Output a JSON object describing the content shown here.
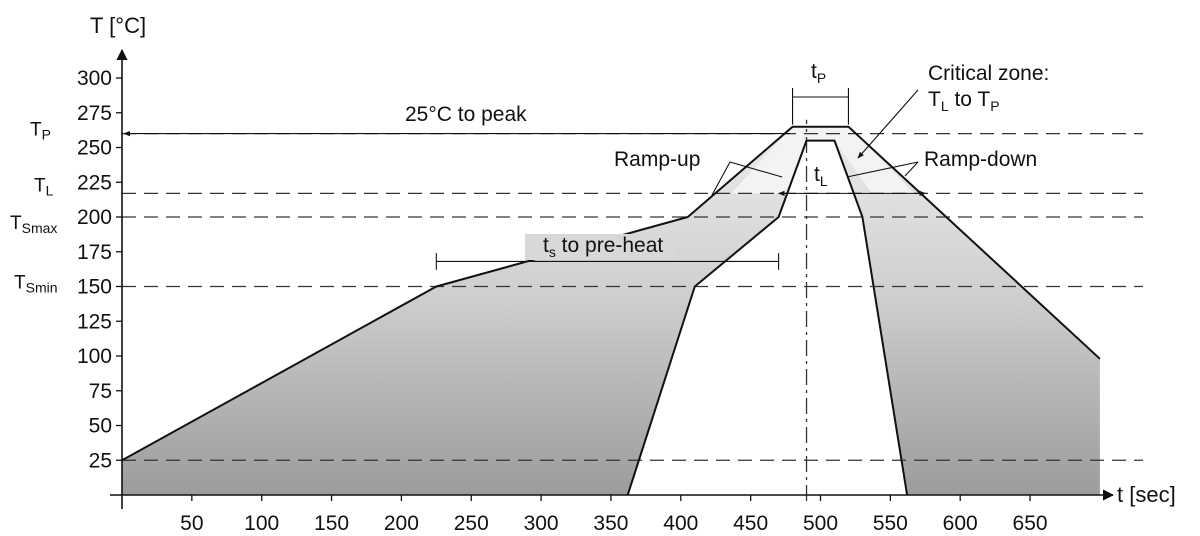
{
  "chart_data": {
    "type": "area",
    "title": "",
    "xlabel": "t [sec]",
    "ylabel": "T [°C]",
    "xlim": [
      0,
      700
    ],
    "ylim": [
      0,
      300
    ],
    "x_ticks": [
      50,
      100,
      150,
      200,
      250,
      300,
      350,
      400,
      450,
      500,
      550,
      600,
      650
    ],
    "y_ticks": [
      25,
      50,
      75,
      100,
      125,
      150,
      175,
      200,
      225,
      250,
      275,
      300
    ],
    "grid": false,
    "legend": "none",
    "reference_levels": [
      {
        "label": "T",
        "sub": "P",
        "y": 260
      },
      {
        "label": "T",
        "sub": "L",
        "y": 217
      },
      {
        "label": "T",
        "sub": "Smax",
        "y": 200
      },
      {
        "label": "T",
        "sub": "Smin",
        "y": 150
      },
      {
        "y": 25
      }
    ],
    "reference_time": 490,
    "outer_envelope": [
      [
        0,
        25
      ],
      [
        225,
        150
      ],
      [
        405,
        200
      ],
      [
        480,
        265
      ],
      [
        520,
        265
      ],
      [
        700,
        98
      ]
    ],
    "inner_envelope": [
      [
        362,
        0
      ],
      [
        410,
        150
      ],
      [
        470,
        200
      ],
      [
        490,
        255
      ],
      [
        510,
        255
      ],
      [
        530,
        200
      ],
      [
        562,
        0
      ]
    ],
    "annotations": [
      {
        "label": "25°C to peak"
      },
      {
        "label": "t",
        "sub": "s",
        "suffix": " to pre-heat",
        "x_from": 225,
        "x_to": 470
      },
      {
        "label": "Ramp-up"
      },
      {
        "label": "Ramp-down"
      },
      {
        "label": "t",
        "sub": "P",
        "x_from": 480,
        "x_to": 520
      },
      {
        "label": "t",
        "sub": "L",
        "x_from": 470,
        "x_to": 575
      },
      {
        "label": "Critical zone:"
      },
      {
        "label": "T",
        "sub": "L",
        "middle": " to T",
        "sub2": "P"
      }
    ],
    "colors": {
      "fill_light": "#ececec",
      "fill_mid": "#cfcfcf",
      "fill_dark": "#9c9c9c",
      "critical": "#f3f3f3"
    }
  }
}
